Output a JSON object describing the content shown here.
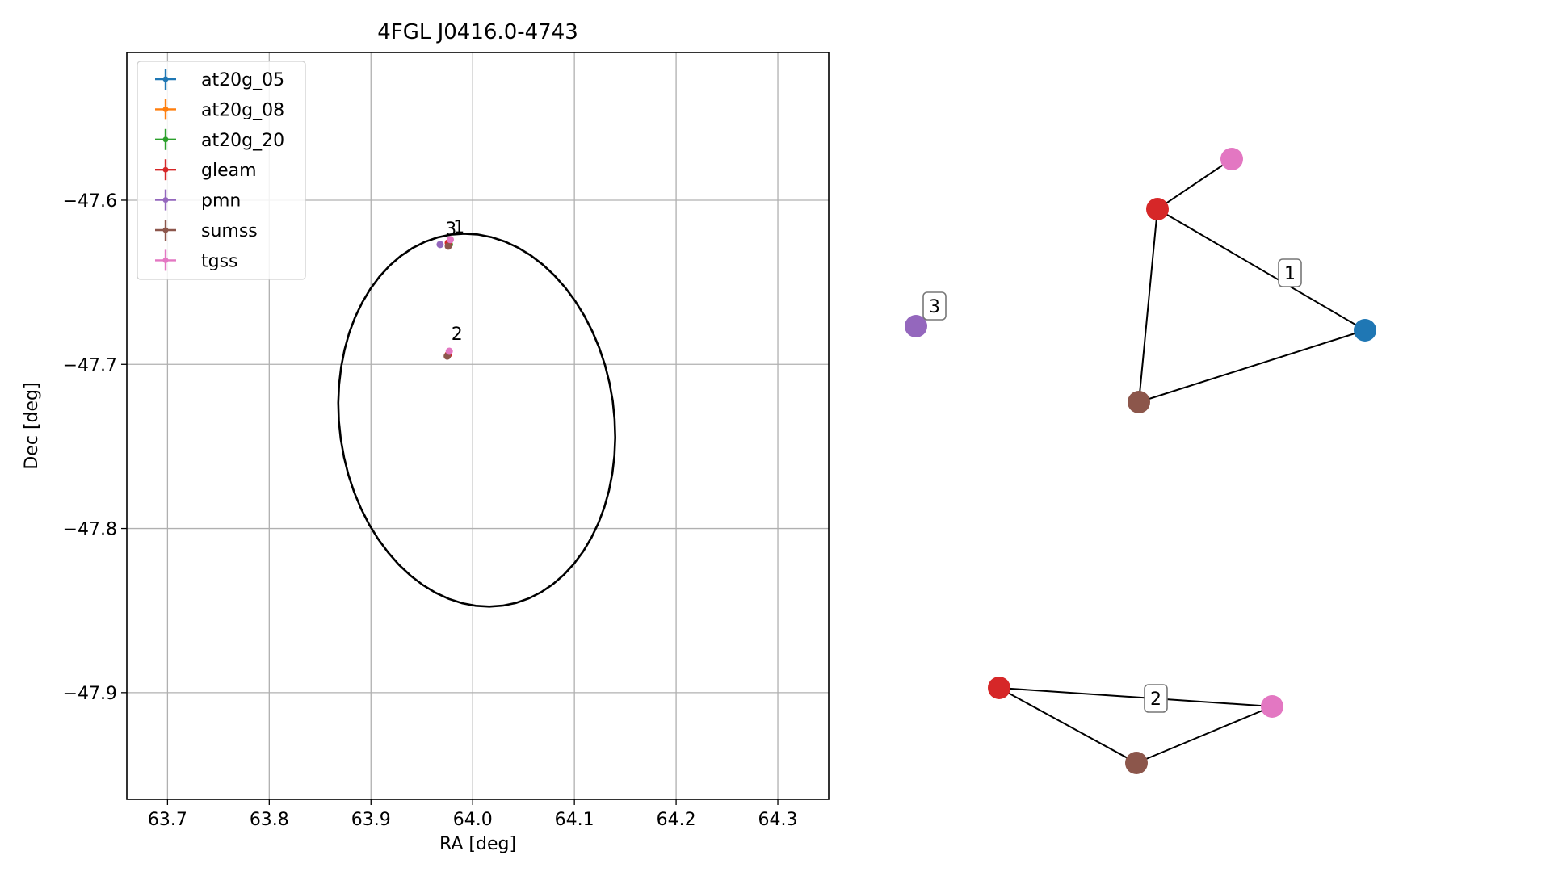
{
  "chart_data": [
    {
      "type": "scatter",
      "title": "4FGL J0416.0-4743",
      "xlabel": "RA [deg]",
      "ylabel": "Dec [deg]",
      "xlim": [
        63.66,
        64.35
      ],
      "ylim": [
        -47.965,
        -47.51
      ],
      "x_ticks": [
        63.7,
        63.8,
        63.9,
        64.0,
        64.1,
        64.2,
        64.3
      ],
      "x_tick_labels": [
        "63.7",
        "63.8",
        "63.9",
        "64.0",
        "64.1",
        "64.2",
        "64.3"
      ],
      "y_ticks": [
        -47.6,
        -47.7,
        -47.8,
        -47.9
      ],
      "y_tick_labels": [
        "−47.6",
        "−47.7",
        "−47.8",
        "−47.9"
      ],
      "grid": true,
      "legend_position": "top-left",
      "series": [
        {
          "name": "at20g_05",
          "color": "#1f77b4",
          "points": [
            [
              63.977,
              -47.627
            ]
          ]
        },
        {
          "name": "at20g_08",
          "color": "#ff7f0e",
          "points": [
            [
              63.977,
              -47.627
            ]
          ]
        },
        {
          "name": "at20g_20",
          "color": "#2ca02c",
          "points": [
            [
              63.977,
              -47.627
            ]
          ]
        },
        {
          "name": "gleam",
          "color": "#d62728",
          "points": [
            [
              63.976,
              -47.626
            ],
            [
              63.976,
              -47.694
            ]
          ]
        },
        {
          "name": "pmn",
          "color": "#9467bd",
          "points": [
            [
              63.968,
              -47.627
            ]
          ]
        },
        {
          "name": "sumss",
          "color": "#8c564b",
          "points": [
            [
              63.976,
              -47.628
            ],
            [
              63.975,
              -47.695
            ]
          ]
        },
        {
          "name": "tgss",
          "color": "#e377c2",
          "points": [
            [
              63.978,
              -47.624
            ],
            [
              63.977,
              -47.692
            ]
          ]
        }
      ],
      "annotations": [
        {
          "text": "3",
          "x": 63.973,
          "y": -47.624
        },
        {
          "text": "1",
          "x": 63.981,
          "y": -47.623
        },
        {
          "text": "2",
          "x": 63.979,
          "y": -47.688
        }
      ],
      "ellipse": {
        "center": [
          64.004,
          -47.734
        ],
        "color": "#000000"
      }
    },
    {
      "type": "graph",
      "clusters": [
        {
          "label": "1",
          "nodes": [
            {
              "id": "tgss",
              "color": "#e377c2"
            },
            {
              "id": "gleam",
              "color": "#d62728"
            },
            {
              "id": "at20g",
              "color": "#1f77b4"
            },
            {
              "id": "sumss",
              "color": "#8c564b"
            }
          ],
          "edges": [
            [
              "tgss",
              "gleam"
            ],
            [
              "gleam",
              "at20g"
            ],
            [
              "gleam",
              "sumss"
            ],
            [
              "sumss",
              "at20g"
            ]
          ]
        },
        {
          "label": "2",
          "nodes": [
            {
              "id": "gleam",
              "color": "#d62728"
            },
            {
              "id": "tgss",
              "color": "#e377c2"
            },
            {
              "id": "sumss",
              "color": "#8c564b"
            }
          ],
          "edges": [
            [
              "gleam",
              "tgss"
            ],
            [
              "gleam",
              "sumss"
            ],
            [
              "sumss",
              "tgss"
            ]
          ]
        },
        {
          "label": "3",
          "nodes": [
            {
              "id": "pmn",
              "color": "#9467bd"
            }
          ],
          "edges": []
        }
      ]
    }
  ]
}
